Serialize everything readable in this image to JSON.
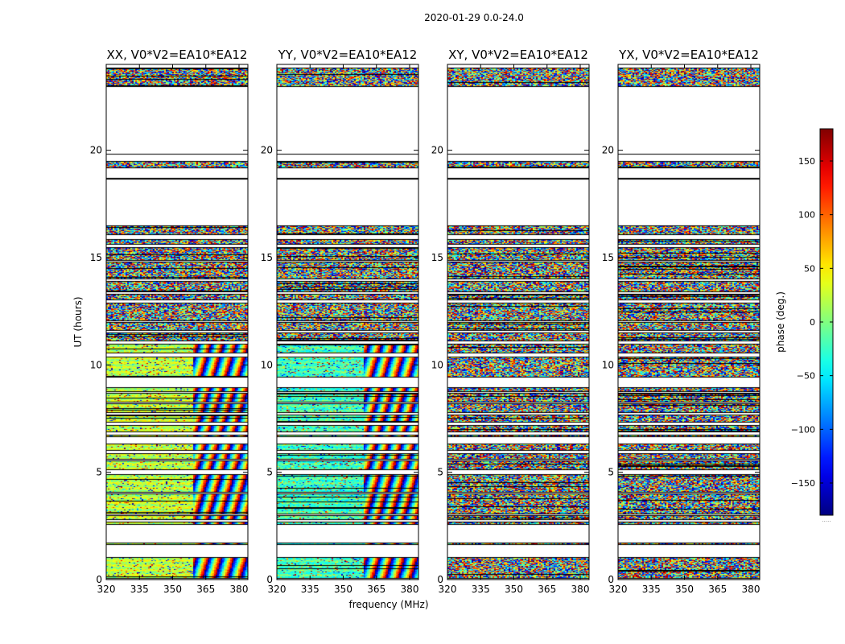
{
  "chart_data": {
    "type": "heatmap",
    "suptitle": "2020-01-29 0.0-24.0",
    "xlabel": "frequency (MHz)",
    "ylabel": "UT (hours)",
    "xlim": [
      320,
      384
    ],
    "ylim": [
      0,
      24
    ],
    "xticks": [
      320,
      335,
      350,
      365,
      380
    ],
    "yticks": [
      0,
      5,
      10,
      15,
      20
    ],
    "colormap": "jet",
    "colorbar": {
      "label": "phase (deg.)",
      "range": [
        -180,
        180
      ],
      "ticks": [
        -150,
        -100,
        -50,
        0,
        50,
        100,
        150
      ],
      "tick_labels": [
        "−150",
        "−100",
        "−50",
        "0",
        "50",
        "100",
        "150"
      ],
      "footer": "....."
    },
    "panels": [
      {
        "title": "XX, V0*V2=EA10*EA12",
        "coherent_hue": 20
      },
      {
        "title": "YY, V0*V2=EA10*EA12",
        "coherent_hue": -25
      },
      {
        "title": "XY, V0*V2=EA10*EA12",
        "coherent_hue": null
      },
      {
        "title": "YX, V0*V2=EA10*EA12",
        "coherent_hue": null
      }
    ],
    "coherent_band_MHz": [
      320,
      359
    ],
    "flagged_hours": [
      [
        1.7,
        22.9
      ],
      [
        2.5,
        16.4
      ]
    ],
    "data_blocks_hours": [
      [
        0.05,
        1.05
      ],
      [
        1.6,
        1.72
      ],
      [
        2.55,
        2.7
      ],
      [
        2.78,
        3.0
      ],
      [
        3.05,
        4.0
      ],
      [
        4.05,
        4.9
      ],
      [
        5.1,
        5.55
      ],
      [
        5.6,
        5.9
      ],
      [
        6.0,
        6.35
      ],
      [
        6.65,
        6.75
      ],
      [
        6.85,
        7.2
      ],
      [
        7.3,
        7.7
      ],
      [
        7.75,
        8.2
      ],
      [
        8.25,
        8.7
      ],
      [
        8.75,
        8.95
      ],
      [
        9.4,
        10.4
      ],
      [
        10.55,
        11.0
      ],
      [
        11.1,
        11.5
      ],
      [
        11.6,
        12.0
      ],
      [
        12.05,
        12.9
      ],
      [
        13.0,
        13.3
      ],
      [
        13.4,
        13.9
      ],
      [
        14.0,
        14.8
      ],
      [
        14.85,
        15.5
      ],
      [
        15.6,
        15.85
      ],
      [
        16.05,
        16.5
      ],
      [
        18.65,
        18.7
      ],
      [
        19.15,
        19.5
      ],
      [
        19.8,
        19.85
      ],
      [
        22.95,
        23.85
      ]
    ]
  }
}
